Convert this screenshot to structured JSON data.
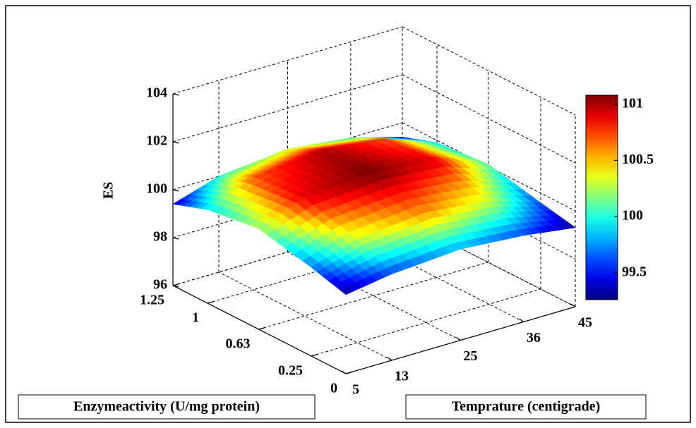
{
  "chart_data": {
    "type": "surface",
    "x_label": "Temprature (centigrade)",
    "y_label": "Enzymeactivity (U/mg protein)",
    "z_label": "ES",
    "x": [
      5,
      13,
      25,
      36,
      45
    ],
    "y": [
      0,
      0.25,
      0.63,
      1,
      1.25
    ],
    "z": [
      [
        99.3,
        99.6,
        99.8,
        99.6,
        99.3
      ],
      [
        99.7,
        100.3,
        100.6,
        100.3,
        99.6
      ],
      [
        100.2,
        100.9,
        101.1,
        100.9,
        100.1
      ],
      [
        99.9,
        100.7,
        101.0,
        100.7,
        99.9
      ],
      [
        99.4,
        100.0,
        100.3,
        100.0,
        99.4
      ]
    ],
    "xlim": [
      5,
      45
    ],
    "ylim": [
      0,
      1.25
    ],
    "zlim": [
      96,
      104
    ],
    "xticks": [
      5,
      13,
      25,
      36,
      45
    ],
    "yticks": [
      0,
      0.25,
      0.63,
      1,
      1.25
    ],
    "zticks": [
      96,
      98,
      100,
      102,
      104
    ],
    "colormap": "jet",
    "clim": [
      99.26,
      101.08
    ],
    "colorbar_ticks": [
      99.5,
      100,
      100.5,
      101
    ],
    "grid": true
  }
}
